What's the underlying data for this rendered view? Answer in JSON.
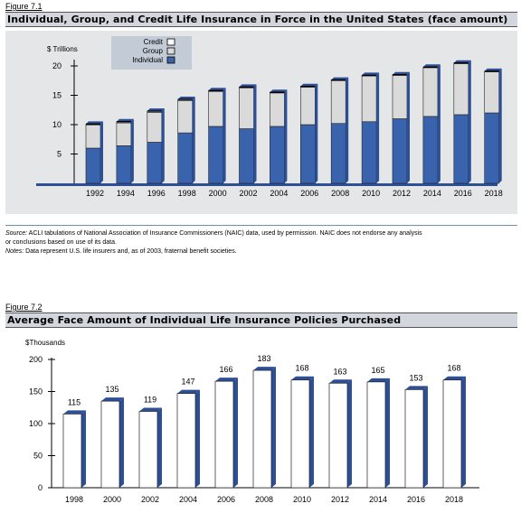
{
  "figure1": {
    "label": "Figure 7.1",
    "title": "Individual, Group, and Credit Life Insurance in Force in the United States (face amount)",
    "unit": "$ Trillions",
    "source_label": "Source:",
    "source_text": " ACLI tabulations of National Association of Insurance Commissioners (NAIC) data, used by permission. NAIC does not endorse any analysis",
    "source_text2": "or conclusions based on use of its data.",
    "notes_label": "Notes:",
    "notes_text": " Data represent U.S. life insurers and, as of 2003, fraternal benefit societies."
  },
  "figure2": {
    "label": "Figure 7.2",
    "title": "Average Face Amount of Individual Life Insurance Policies Purchased",
    "unit": "$Thousands"
  },
  "colors": {
    "individual": "#3a63ad",
    "group": "#dadada",
    "credit": "#ffffff",
    "side": "#2c4f96",
    "plot_bg": "#e4e6e8",
    "title_bg": "#d3d7dd"
  },
  "chart_data": [
    {
      "type": "bar",
      "stacked": true,
      "categories": [
        "1992",
        "1994",
        "1996",
        "1998",
        "2000",
        "2002",
        "2004",
        "2006",
        "2008",
        "2010",
        "2012",
        "2014",
        "2016",
        "2018"
      ],
      "series": [
        {
          "name": "Individual",
          "values": [
            6.0,
            6.4,
            7.0,
            8.6,
            9.7,
            9.3,
            9.7,
            10.0,
            10.2,
            10.5,
            11.0,
            11.4,
            11.7,
            12.0
          ]
        },
        {
          "name": "Group",
          "values": [
            3.9,
            3.9,
            5.1,
            5.5,
            5.9,
            6.9,
            5.7,
            6.4,
            7.3,
            7.8,
            7.4,
            8.3,
            8.7,
            7.0
          ]
        },
        {
          "name": "Credit",
          "values": [
            0.2,
            0.2,
            0.2,
            0.2,
            0.2,
            0.2,
            0.1,
            0.1,
            0.1,
            0.1,
            0.1,
            0.1,
            0.1,
            0.1
          ]
        }
      ],
      "ylabel": "$ Trillions",
      "yticks": [
        5,
        10,
        15,
        20
      ],
      "ylim": [
        0,
        22
      ],
      "legend": "top-left"
    },
    {
      "type": "bar",
      "categories": [
        "1998",
        "2000",
        "2002",
        "2004",
        "2006",
        "2008",
        "2010",
        "2012",
        "2014",
        "2016",
        "2018"
      ],
      "values": [
        115,
        135,
        119,
        147,
        166,
        183,
        168,
        163,
        165,
        153,
        168
      ],
      "data_labels": [
        "115",
        "135",
        "119",
        "147",
        "166",
        "183",
        "168",
        "163",
        "165",
        "153",
        "168"
      ],
      "ylabel": "$Thousands",
      "yticks": [
        0,
        50,
        100,
        150,
        200
      ],
      "ylim": [
        0,
        200
      ]
    }
  ]
}
